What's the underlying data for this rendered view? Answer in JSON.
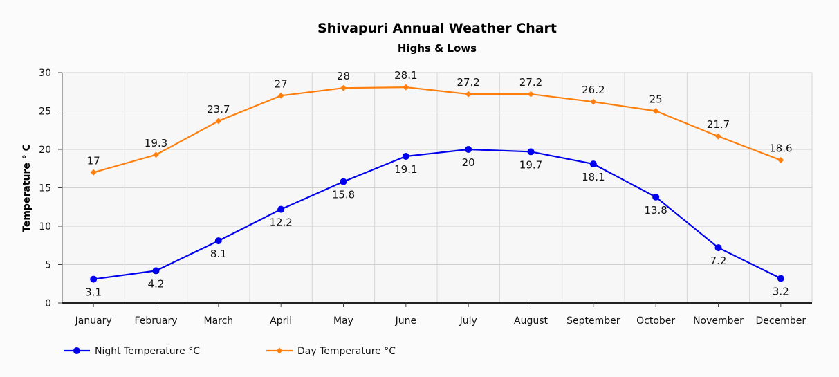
{
  "chart_data": {
    "type": "line",
    "title": "Shivapuri Annual Weather Chart",
    "subtitle": "Highs & Lows",
    "xlabel": "",
    "ylabel": "Temperature ° C",
    "categories": [
      "January",
      "February",
      "March",
      "April",
      "May",
      "June",
      "July",
      "August",
      "September",
      "October",
      "November",
      "December"
    ],
    "ylim": [
      0,
      30
    ],
    "yticks": [
      0,
      5,
      10,
      15,
      20,
      25,
      30
    ],
    "grid": true,
    "legend_position": "bottom-left",
    "series": [
      {
        "name": "Night Temperature °C",
        "values": [
          3.1,
          4.2,
          8.1,
          12.2,
          15.8,
          19.1,
          20,
          19.7,
          18.1,
          13.8,
          7.2,
          3.2
        ],
        "color": "#0000ee",
        "marker": "circle",
        "label_position": "below"
      },
      {
        "name": "Day Temperature °C",
        "values": [
          17,
          19.3,
          23.7,
          27,
          28,
          28.1,
          27.2,
          27.2,
          26.2,
          25,
          21.7,
          18.6
        ],
        "color": "#ff7f0e",
        "marker": "diamond",
        "label_position": "above"
      }
    ]
  }
}
